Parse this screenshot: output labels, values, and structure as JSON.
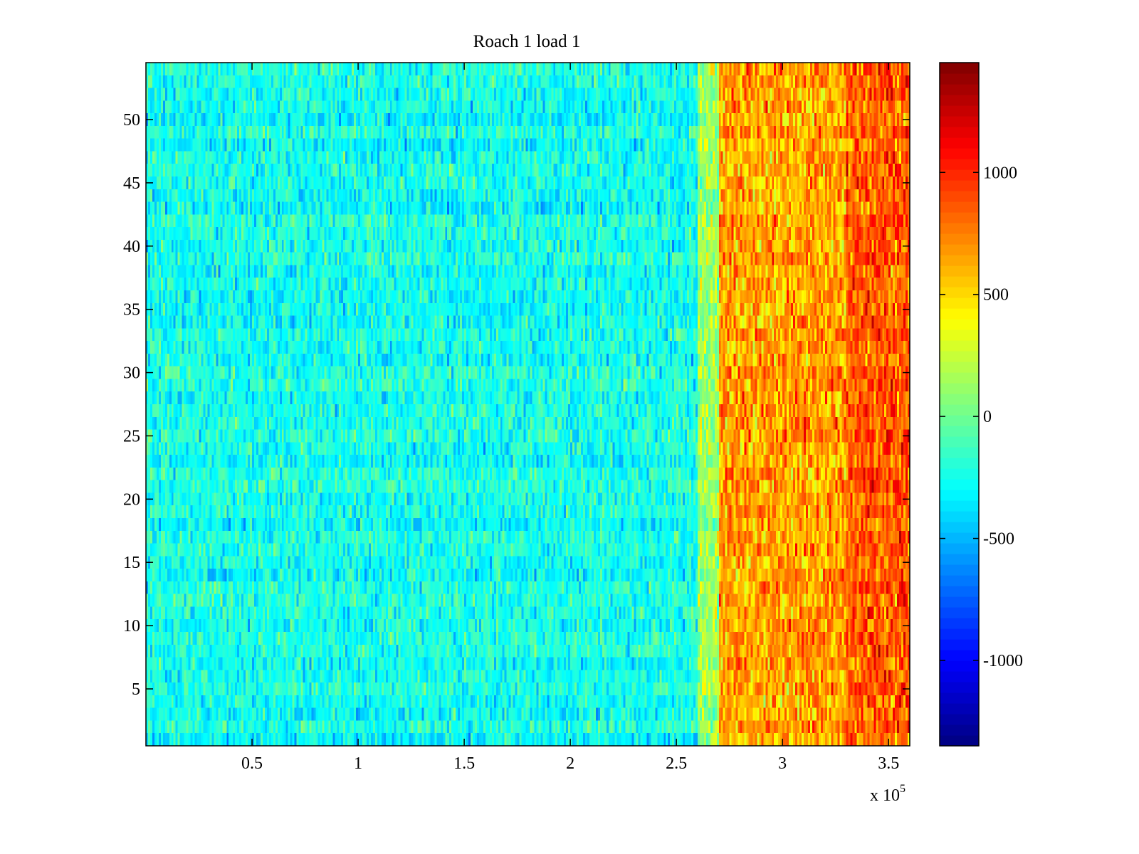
{
  "chart_data": {
    "type": "heatmap",
    "title": "Roach 1 load 1",
    "xlabel": "",
    "ylabel": "",
    "x_multiplier_label": "x 10",
    "x_multiplier_exponent": "5",
    "xlim": [
      0,
      3.6
    ],
    "ylim": [
      0.5,
      54.5
    ],
    "x_ticks": [
      0.5,
      1,
      1.5,
      2,
      2.5,
      3,
      3.5
    ],
    "x_tick_labels": [
      "0.5",
      "1",
      "1.5",
      "2",
      "2.5",
      "3",
      "3.5"
    ],
    "y_ticks": [
      5,
      10,
      15,
      20,
      25,
      30,
      35,
      40,
      45,
      50
    ],
    "y_tick_labels": [
      "5",
      "10",
      "15",
      "20",
      "25",
      "30",
      "35",
      "40",
      "45",
      "50"
    ],
    "rows": 54,
    "colorbar": {
      "colormap": "jet",
      "range": [
        -1350,
        1450
      ],
      "ticks": [
        -1000,
        -500,
        0,
        500,
        1000
      ],
      "tick_labels": [
        "-1000",
        "-500",
        "0",
        "500",
        "1000"
      ]
    },
    "value_regions": [
      {
        "x_range": [
          0,
          2.6
        ],
        "mean": -250,
        "noise": 220
      },
      {
        "x_range": [
          2.6,
          2.7
        ],
        "mean": 150,
        "noise": 250
      },
      {
        "x_range": [
          2.7,
          3.3
        ],
        "mean": 650,
        "noise": 300
      },
      {
        "x_range": [
          3.3,
          3.6
        ],
        "mean": 850,
        "noise": 300
      }
    ],
    "grid": false
  },
  "colors": {
    "axis": "#000000",
    "background": "#ffffff"
  }
}
